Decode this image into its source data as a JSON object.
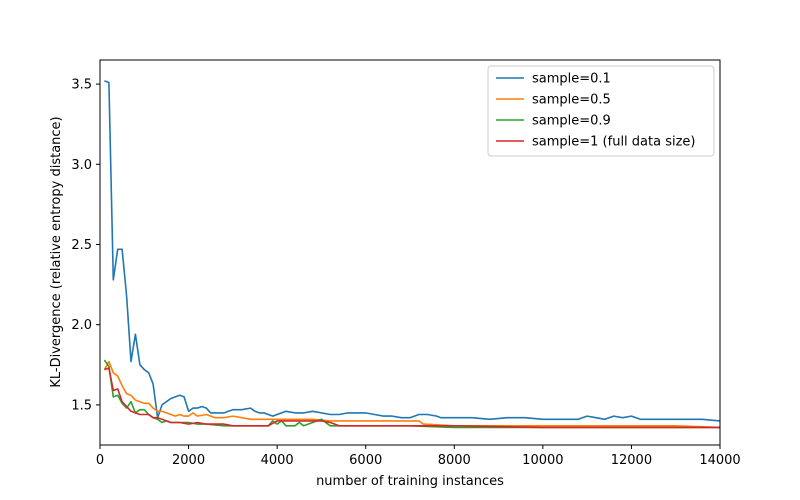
{
  "chart_data": {
    "type": "line",
    "title": "",
    "xlabel": "number of training instances",
    "ylabel": "KL-Divergence (relative entropy distance)",
    "xlim": [
      0,
      14000
    ],
    "ylim": [
      1.25,
      3.65
    ],
    "xticks": [
      0,
      2000,
      4000,
      6000,
      8000,
      10000,
      12000,
      14000
    ],
    "xtick_labels": [
      "0",
      "2000",
      "4000",
      "6000",
      "8000",
      "10000",
      "12000",
      "14000"
    ],
    "yticks": [
      1.5,
      2.0,
      2.5,
      3.0,
      3.5
    ],
    "ytick_labels": [
      "1.5",
      "2.0",
      "2.5",
      "3.0",
      "3.5"
    ],
    "grid": false,
    "legend_position": "top-right",
    "series": [
      {
        "name": "sample=0.1",
        "color": "#1f77b4",
        "points": [
          [
            100,
            3.52
          ],
          [
            200,
            3.51
          ],
          [
            300,
            2.28
          ],
          [
            400,
            2.47
          ],
          [
            500,
            2.47
          ],
          [
            600,
            2.18
          ],
          [
            700,
            1.77
          ],
          [
            800,
            1.94
          ],
          [
            900,
            1.75
          ],
          [
            1000,
            1.72
          ],
          [
            1100,
            1.7
          ],
          [
            1200,
            1.63
          ],
          [
            1300,
            1.42
          ],
          [
            1400,
            1.5
          ],
          [
            1500,
            1.52
          ],
          [
            1600,
            1.54
          ],
          [
            1700,
            1.55
          ],
          [
            1800,
            1.56
          ],
          [
            1900,
            1.55
          ],
          [
            2000,
            1.46
          ],
          [
            2100,
            1.48
          ],
          [
            2200,
            1.48
          ],
          [
            2300,
            1.49
          ],
          [
            2400,
            1.48
          ],
          [
            2500,
            1.45
          ],
          [
            2600,
            1.45
          ],
          [
            2700,
            1.45
          ],
          [
            2800,
            1.45
          ],
          [
            2900,
            1.46
          ],
          [
            3000,
            1.47
          ],
          [
            3200,
            1.47
          ],
          [
            3400,
            1.48
          ],
          [
            3500,
            1.46
          ],
          [
            3600,
            1.45
          ],
          [
            3700,
            1.45
          ],
          [
            3800,
            1.44
          ],
          [
            3900,
            1.43
          ],
          [
            4000,
            1.44
          ],
          [
            4200,
            1.46
          ],
          [
            4400,
            1.45
          ],
          [
            4600,
            1.45
          ],
          [
            4800,
            1.46
          ],
          [
            5000,
            1.45
          ],
          [
            5200,
            1.44
          ],
          [
            5400,
            1.44
          ],
          [
            5600,
            1.45
          ],
          [
            5800,
            1.45
          ],
          [
            6000,
            1.45
          ],
          [
            6200,
            1.44
          ],
          [
            6400,
            1.43
          ],
          [
            6600,
            1.43
          ],
          [
            6800,
            1.42
          ],
          [
            7000,
            1.42
          ],
          [
            7200,
            1.44
          ],
          [
            7400,
            1.44
          ],
          [
            7600,
            1.43
          ],
          [
            7700,
            1.42
          ],
          [
            8000,
            1.42
          ],
          [
            8400,
            1.42
          ],
          [
            8800,
            1.41
          ],
          [
            9200,
            1.42
          ],
          [
            9600,
            1.42
          ],
          [
            10000,
            1.41
          ],
          [
            10400,
            1.41
          ],
          [
            10800,
            1.41
          ],
          [
            11000,
            1.43
          ],
          [
            11200,
            1.42
          ],
          [
            11400,
            1.41
          ],
          [
            11600,
            1.43
          ],
          [
            11800,
            1.42
          ],
          [
            12000,
            1.43
          ],
          [
            12200,
            1.41
          ],
          [
            12400,
            1.41
          ],
          [
            12800,
            1.41
          ],
          [
            13200,
            1.41
          ],
          [
            13600,
            1.41
          ],
          [
            14000,
            1.4
          ]
        ]
      },
      {
        "name": "sample=0.5",
        "color": "#ff7f0e",
        "points": [
          [
            100,
            1.72
          ],
          [
            200,
            1.77
          ],
          [
            300,
            1.7
          ],
          [
            400,
            1.68
          ],
          [
            500,
            1.62
          ],
          [
            600,
            1.57
          ],
          [
            700,
            1.56
          ],
          [
            800,
            1.53
          ],
          [
            900,
            1.52
          ],
          [
            1000,
            1.51
          ],
          [
            1100,
            1.51
          ],
          [
            1200,
            1.48
          ],
          [
            1300,
            1.46
          ],
          [
            1400,
            1.46
          ],
          [
            1500,
            1.45
          ],
          [
            1600,
            1.44
          ],
          [
            1700,
            1.43
          ],
          [
            1800,
            1.44
          ],
          [
            1900,
            1.43
          ],
          [
            2000,
            1.43
          ],
          [
            2100,
            1.45
          ],
          [
            2200,
            1.43
          ],
          [
            2400,
            1.44
          ],
          [
            2600,
            1.42
          ],
          [
            2800,
            1.42
          ],
          [
            3000,
            1.43
          ],
          [
            3200,
            1.42
          ],
          [
            3400,
            1.41
          ],
          [
            3600,
            1.41
          ],
          [
            3800,
            1.41
          ],
          [
            4000,
            1.41
          ],
          [
            4400,
            1.41
          ],
          [
            4800,
            1.41
          ],
          [
            5200,
            1.4
          ],
          [
            5600,
            1.4
          ],
          [
            6000,
            1.4
          ],
          [
            6400,
            1.4
          ],
          [
            6800,
            1.4
          ],
          [
            7200,
            1.4
          ],
          [
            7300,
            1.38
          ],
          [
            8000,
            1.37
          ],
          [
            9000,
            1.37
          ],
          [
            10000,
            1.37
          ],
          [
            11000,
            1.37
          ],
          [
            12000,
            1.37
          ],
          [
            13000,
            1.37
          ],
          [
            14000,
            1.36
          ]
        ]
      },
      {
        "name": "sample=0.9",
        "color": "#2ca02c",
        "points": [
          [
            100,
            1.78
          ],
          [
            200,
            1.74
          ],
          [
            300,
            1.55
          ],
          [
            400,
            1.56
          ],
          [
            500,
            1.51
          ],
          [
            600,
            1.48
          ],
          [
            700,
            1.52
          ],
          [
            800,
            1.45
          ],
          [
            900,
            1.47
          ],
          [
            1000,
            1.47
          ],
          [
            1100,
            1.44
          ],
          [
            1200,
            1.42
          ],
          [
            1300,
            1.41
          ],
          [
            1400,
            1.39
          ],
          [
            1500,
            1.4
          ],
          [
            1600,
            1.39
          ],
          [
            1800,
            1.39
          ],
          [
            2000,
            1.39
          ],
          [
            2200,
            1.38
          ],
          [
            2400,
            1.38
          ],
          [
            2800,
            1.37
          ],
          [
            3200,
            1.37
          ],
          [
            3600,
            1.37
          ],
          [
            3800,
            1.37
          ],
          [
            3900,
            1.4
          ],
          [
            4000,
            1.38
          ],
          [
            4100,
            1.4
          ],
          [
            4200,
            1.37
          ],
          [
            4400,
            1.37
          ],
          [
            4500,
            1.39
          ],
          [
            4600,
            1.37
          ],
          [
            4800,
            1.39
          ],
          [
            5000,
            1.41
          ],
          [
            5200,
            1.37
          ],
          [
            5600,
            1.37
          ],
          [
            6000,
            1.37
          ],
          [
            7000,
            1.37
          ],
          [
            8000,
            1.36
          ],
          [
            10000,
            1.36
          ],
          [
            12000,
            1.36
          ],
          [
            14000,
            1.36
          ]
        ]
      },
      {
        "name": "sample=1 (full data size)",
        "color": "#d62728",
        "points": [
          [
            100,
            1.72
          ],
          [
            200,
            1.73
          ],
          [
            300,
            1.59
          ],
          [
            400,
            1.6
          ],
          [
            500,
            1.52
          ],
          [
            600,
            1.49
          ],
          [
            700,
            1.46
          ],
          [
            800,
            1.45
          ],
          [
            900,
            1.44
          ],
          [
            1000,
            1.44
          ],
          [
            1100,
            1.44
          ],
          [
            1200,
            1.42
          ],
          [
            1300,
            1.42
          ],
          [
            1400,
            1.41
          ],
          [
            1500,
            1.4
          ],
          [
            1600,
            1.39
          ],
          [
            1800,
            1.39
          ],
          [
            2000,
            1.38
          ],
          [
            2200,
            1.39
          ],
          [
            2400,
            1.38
          ],
          [
            2800,
            1.38
          ],
          [
            3000,
            1.37
          ],
          [
            3400,
            1.37
          ],
          [
            3800,
            1.37
          ],
          [
            4000,
            1.4
          ],
          [
            4400,
            1.4
          ],
          [
            4800,
            1.4
          ],
          [
            5000,
            1.4
          ],
          [
            5200,
            1.39
          ],
          [
            5400,
            1.37
          ],
          [
            6000,
            1.37
          ],
          [
            7000,
            1.37
          ],
          [
            8000,
            1.37
          ],
          [
            10000,
            1.36
          ],
          [
            12000,
            1.36
          ],
          [
            14000,
            1.36
          ]
        ]
      }
    ]
  }
}
